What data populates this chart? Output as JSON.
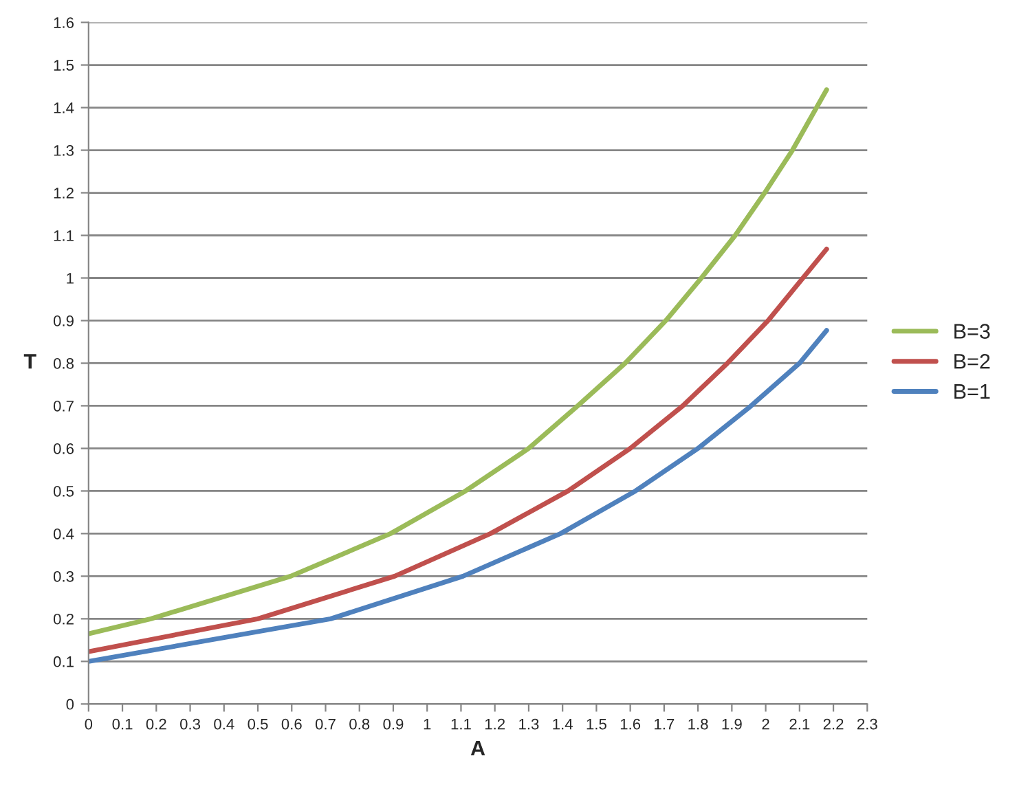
{
  "chart_data": {
    "type": "line",
    "xlabel": "A",
    "ylabel": "T",
    "series": [
      {
        "name": "B=3",
        "color": "#9bbb59",
        "x": [
          0,
          0.184,
          0.597,
          0.892,
          1.113,
          1.3,
          1.445,
          1.585,
          1.705,
          1.81,
          1.91,
          1.997,
          2.079,
          2.18
        ],
        "values": [
          0.165,
          0.2,
          0.3,
          0.4,
          0.5,
          0.6,
          0.7,
          0.8,
          0.9,
          1.0,
          1.1,
          1.2,
          1.3,
          1.442
        ]
      },
      {
        "name": "B=2",
        "color": "#c0504d",
        "x": [
          0,
          0.5,
          0.904,
          1.187,
          1.416,
          1.6,
          1.755,
          1.887,
          2.007,
          2.18
        ],
        "values": [
          0.123,
          0.2,
          0.3,
          0.4,
          0.5,
          0.6,
          0.7,
          0.8,
          0.9,
          1.068
        ]
      },
      {
        "name": "B=1",
        "color": "#4f81bd",
        "x": [
          0,
          0.715,
          1.106,
          1.394,
          1.615,
          1.8,
          1.957,
          2.1,
          2.18
        ],
        "values": [
          0.1,
          0.2,
          0.3,
          0.4,
          0.5,
          0.6,
          0.7,
          0.8,
          0.877
        ]
      }
    ],
    "xlim": [
      0,
      2.3
    ],
    "xticks": [
      0,
      0.1,
      0.2,
      0.3,
      0.4,
      0.5,
      0.6,
      0.7,
      0.8,
      0.9,
      1,
      1.1,
      1.2,
      1.3,
      1.4,
      1.5,
      1.6,
      1.7,
      1.8,
      1.9,
      2,
      2.1,
      2.2,
      2.3
    ],
    "ylim": [
      0,
      1.6
    ],
    "yticks": [
      0,
      0.1,
      0.2,
      0.3,
      0.4,
      0.5,
      0.6,
      0.7,
      0.8,
      0.9,
      1,
      1.1,
      1.2,
      1.3,
      1.4,
      1.5,
      1.6
    ],
    "grid": "y",
    "legend": "right",
    "marker": "none",
    "line_style": "solid"
  }
}
